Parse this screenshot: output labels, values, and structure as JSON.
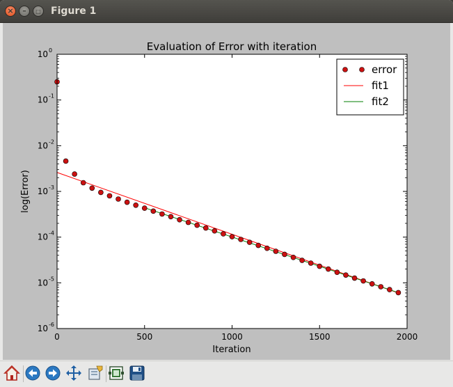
{
  "window": {
    "title": "Figure 1"
  },
  "toolbar": {
    "buttons": [
      {
        "name": "home-button",
        "icon": "home-icon"
      },
      {
        "name": "back-button",
        "icon": "arrow-left-icon"
      },
      {
        "name": "forward-button",
        "icon": "arrow-right-icon"
      },
      {
        "name": "pan-button",
        "icon": "move-arrows-icon"
      },
      {
        "name": "zoom-button",
        "icon": "zoom-rectangle-icon"
      },
      {
        "name": "subplots-button",
        "icon": "subplots-config-icon"
      },
      {
        "name": "save-button",
        "icon": "floppy-disk-icon"
      }
    ]
  },
  "chart_data": {
    "type": "scatter",
    "title": "Evaluation of Error with iteration",
    "xlabel": "Iteration",
    "ylabel": "log(Error)",
    "xlim": [
      0,
      2000
    ],
    "ylim": [
      1e-06,
      1
    ],
    "yscale": "log",
    "xticks": [
      "0",
      "500",
      "1000",
      "1500",
      "2000"
    ],
    "yticks": [
      {
        "base": "10",
        "exp": "-6"
      },
      {
        "base": "10",
        "exp": "-5"
      },
      {
        "base": "10",
        "exp": "-4"
      },
      {
        "base": "10",
        "exp": "-3"
      },
      {
        "base": "10",
        "exp": "-2"
      },
      {
        "base": "10",
        "exp": "-1"
      },
      {
        "base": "10",
        "exp": "0"
      }
    ],
    "legend_position": "top-right",
    "grid": false,
    "colors": {
      "error": "#cc1111",
      "fit1": "#ff0000",
      "fit2": "#007f00"
    },
    "series": [
      {
        "name": "error",
        "kind": "markers",
        "x": [
          0,
          50,
          100,
          150,
          200,
          250,
          300,
          350,
          400,
          450,
          500,
          550,
          600,
          650,
          700,
          750,
          800,
          850,
          900,
          950,
          1000,
          1050,
          1100,
          1150,
          1200,
          1250,
          1300,
          1350,
          1400,
          1450,
          1500,
          1550,
          1600,
          1650,
          1700,
          1750,
          1800,
          1850,
          1900,
          1950
        ],
        "y": [
          0.25,
          0.0046,
          0.0024,
          0.00155,
          0.00118,
          0.00095,
          0.0008,
          0.00068,
          0.00058,
          0.0005,
          0.00043,
          0.00037,
          0.00032,
          0.00028,
          0.00024,
          0.00021,
          0.000182,
          0.000158,
          0.000137,
          0.000118,
          0.000102,
          8.9e-05,
          7.7e-05,
          6.6e-05,
          5.7e-05,
          4.9e-05,
          4.2e-05,
          3.6e-05,
          3.1e-05,
          2.7e-05,
          2.3e-05,
          2e-05,
          1.7e-05,
          1.48e-05,
          1.27e-05,
          1.1e-05,
          9.5e-06,
          8.2e-06,
          7.1e-06,
          6.1e-06
        ]
      },
      {
        "name": "fit1",
        "kind": "line",
        "x": [
          0,
          1950
        ],
        "y": [
          0.0026,
          6e-06
        ]
      },
      {
        "name": "fit2",
        "kind": "line",
        "x": [
          500,
          1950
        ],
        "y": [
          0.00044,
          6.1e-06
        ]
      }
    ]
  }
}
